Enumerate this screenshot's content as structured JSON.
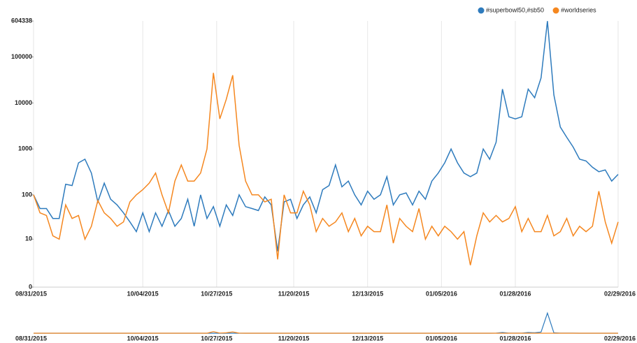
{
  "chart_data": {
    "type": "line",
    "x": [
      "08/31/2015",
      "09/02/2015",
      "09/04/2015",
      "09/06/2015",
      "09/08/2015",
      "09/10/2015",
      "09/12/2015",
      "09/14/2015",
      "09/16/2015",
      "09/18/2015",
      "09/20/2015",
      "09/22/2015",
      "09/24/2015",
      "09/26/2015",
      "09/28/2015",
      "09/30/2015",
      "10/02/2015",
      "10/04/2015",
      "10/06/2015",
      "10/08/2015",
      "10/10/2015",
      "10/12/2015",
      "10/14/2015",
      "10/16/2015",
      "10/18/2015",
      "10/20/2015",
      "10/22/2015",
      "10/24/2015",
      "10/26/2015",
      "10/28/2015",
      "10/30/2015",
      "11/01/2015",
      "11/03/2015",
      "11/05/2015",
      "11/07/2015",
      "11/09/2015",
      "11/11/2015",
      "11/13/2015",
      "11/15/2015",
      "11/17/2015",
      "11/19/2015",
      "11/21/2015",
      "11/23/2015",
      "11/25/2015",
      "11/27/2015",
      "11/29/2015",
      "12/01/2015",
      "12/03/2015",
      "12/05/2015",
      "12/07/2015",
      "12/09/2015",
      "12/11/2015",
      "12/13/2015",
      "12/15/2015",
      "12/17/2015",
      "12/19/2015",
      "12/21/2015",
      "12/23/2015",
      "12/25/2015",
      "12/27/2015",
      "12/29/2015",
      "12/31/2015",
      "01/02/2016",
      "01/04/2016",
      "01/06/2016",
      "01/08/2016",
      "01/10/2016",
      "01/12/2016",
      "01/14/2016",
      "01/16/2016",
      "01/18/2016",
      "01/20/2016",
      "01/22/2016",
      "01/24/2016",
      "01/26/2016",
      "01/28/2016",
      "01/30/2016",
      "02/01/2016",
      "02/03/2016",
      "02/05/2016",
      "02/07/2016",
      "02/09/2016",
      "02/11/2016",
      "02/13/2016",
      "02/15/2016",
      "02/17/2016",
      "02/19/2016",
      "02/21/2016",
      "02/23/2016",
      "02/25/2016",
      "02/27/2016",
      "02/29/2016"
    ],
    "series": [
      {
        "name": "#superbowl50,#sb50",
        "color": "#2e7bbd",
        "values": [
          100,
          50,
          50,
          30,
          30,
          170,
          160,
          500,
          600,
          300,
          70,
          180,
          80,
          60,
          40,
          25,
          15,
          40,
          15,
          40,
          20,
          45,
          20,
          30,
          80,
          20,
          100,
          30,
          55,
          20,
          60,
          35,
          100,
          55,
          50,
          45,
          90,
          60,
          5,
          70,
          80,
          30,
          60,
          90,
          40,
          130,
          160,
          450,
          150,
          200,
          100,
          60,
          120,
          80,
          100,
          250,
          60,
          100,
          110,
          60,
          120,
          80,
          200,
          300,
          500,
          1000,
          500,
          300,
          250,
          300,
          1000,
          600,
          1400,
          20000,
          5000,
          4500,
          5000,
          20000,
          13000,
          35000,
          600000,
          15000,
          3000,
          1800,
          1100,
          600,
          550,
          400,
          320,
          350,
          200,
          280
        ]
      },
      {
        "name": "#worldseries",
        "color": "#f5871f",
        "values": [
          100,
          40,
          35,
          12,
          10,
          60,
          30,
          35,
          10,
          20,
          75,
          40,
          30,
          20,
          25,
          70,
          100,
          130,
          180,
          300,
          100,
          40,
          200,
          450,
          200,
          200,
          300,
          1000,
          45000,
          4500,
          12000,
          40000,
          1200,
          200,
          100,
          100,
          70,
          80,
          3,
          100,
          40,
          40,
          120,
          60,
          15,
          30,
          20,
          25,
          40,
          15,
          30,
          12,
          20,
          15,
          15,
          60,
          8,
          30,
          20,
          15,
          50,
          10,
          20,
          12,
          20,
          15,
          10,
          15,
          2,
          12,
          40,
          25,
          35,
          25,
          30,
          55,
          15,
          30,
          15,
          15,
          35,
          12,
          15,
          30,
          12,
          20,
          15,
          20,
          120,
          25,
          8,
          25
        ]
      }
    ],
    "xlim": [
      "08/31/2015",
      "02/29/2016"
    ],
    "xticks": [
      "08/31/2015",
      "10/04/2015",
      "10/27/2015",
      "11/20/2015",
      "12/13/2015",
      "01/05/2016",
      "01/28/2016",
      "02/29/2016"
    ],
    "ylim": [
      0,
      604338
    ],
    "yticks": [
      0,
      10,
      100,
      1000,
      10000,
      100000,
      604338
    ],
    "yscale": "log",
    "grid": true,
    "legend": "top-right"
  }
}
